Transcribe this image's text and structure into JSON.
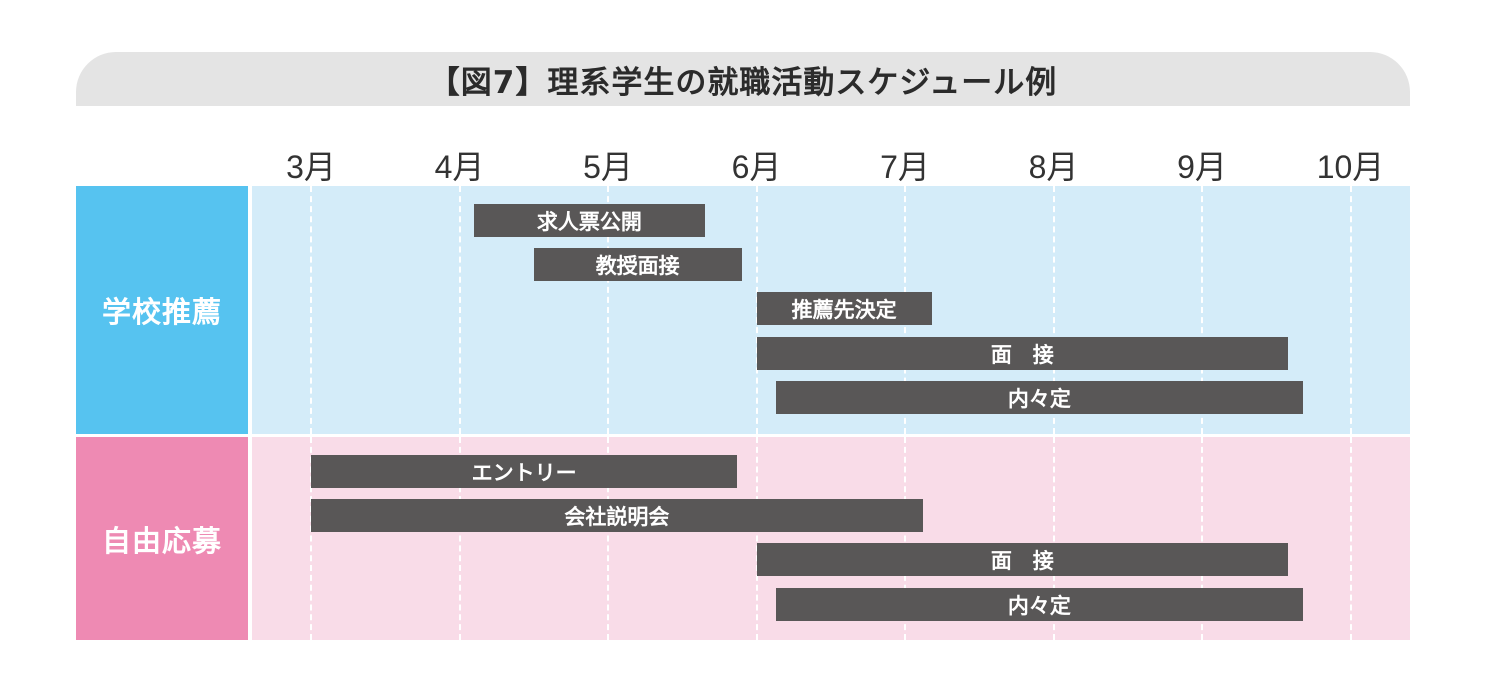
{
  "title": "【図7】理系学生の就職活動スケジュール例",
  "months": [
    "3月",
    "4月",
    "5月",
    "6月",
    "7月",
    "8月",
    "9月",
    "10月"
  ],
  "colors": {
    "school_label": "#56c3f0",
    "school_area": "#d4ecf9",
    "open_label": "#ee8ab3",
    "open_area": "#f9dce8",
    "bar": "#595757"
  },
  "sections": [
    {
      "label": "学校推薦",
      "tasks": [
        {
          "label": "求人票公開",
          "start": 4.1,
          "end": 5.65
        },
        {
          "label": "教授面接",
          "start": 4.5,
          "end": 5.9
        },
        {
          "label": "推薦先決定",
          "start": 6.0,
          "end": 7.18
        },
        {
          "label": "面　接",
          "start": 6.0,
          "end": 9.58
        },
        {
          "label": "内々定",
          "start": 6.13,
          "end": 9.68
        }
      ]
    },
    {
      "label": "自由応募",
      "tasks": [
        {
          "label": "エントリー",
          "start": 3.0,
          "end": 5.87
        },
        {
          "label": "会社説明会",
          "start": 3.0,
          "end": 7.12
        },
        {
          "label": "面　接",
          "start": 6.0,
          "end": 9.58
        },
        {
          "label": "内々定",
          "start": 6.13,
          "end": 9.68
        }
      ]
    }
  ]
}
